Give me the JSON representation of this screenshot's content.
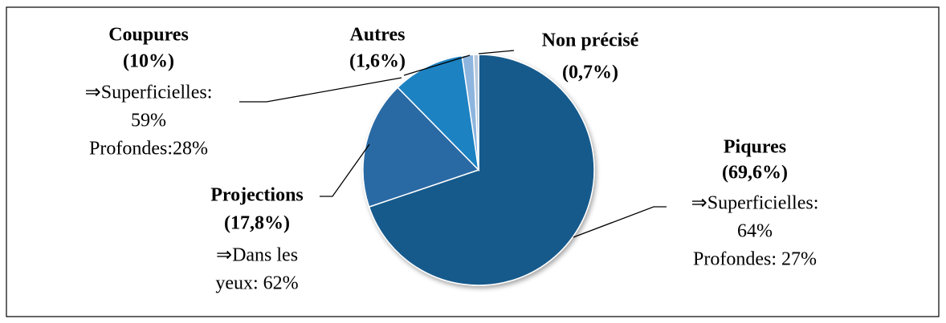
{
  "chart_data": {
    "type": "pie",
    "categories": [
      "Piqures",
      "Projections",
      "Coupures",
      "Autres",
      "Non précisé"
    ],
    "values": [
      69.6,
      17.8,
      10,
      1.6,
      0.7
    ],
    "value_labels": [
      "(69,6%)",
      "(17,8%)",
      "(10%)",
      "(1,6%)",
      "(0,7%)"
    ],
    "colors": [
      "#175a8c",
      "#2a6ba4",
      "#1f82c2",
      "#8db5de",
      "#b8c9dc"
    ],
    "details": [
      [
        "⇒Superficielles:",
        "64%",
        "Profondes: 27%"
      ],
      [
        "⇒Dans les",
        "yeux: 62%"
      ],
      [
        "⇒Superficielles:",
        "59%",
        "Profondes:28%"
      ],
      [],
      []
    ]
  }
}
